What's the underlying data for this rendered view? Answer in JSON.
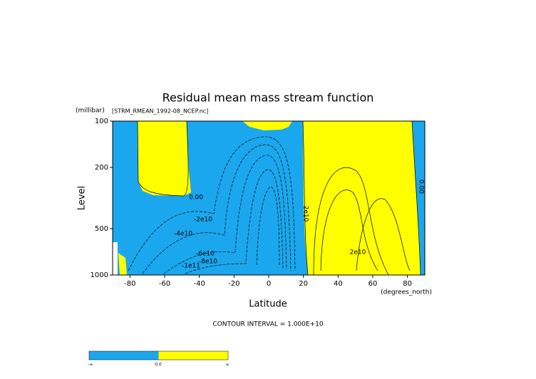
{
  "chart_data": {
    "type": "contour",
    "title": "Residual mean mass stream function",
    "y_units": "(millibar)",
    "subtitle": "[STRM_RMEAN_1992-08_NCEP.nc]",
    "y_label": "Level",
    "x_label": "Latitude",
    "x_units": "(degrees_north)",
    "note": "CONTOUR INTERVAL = 1.000E+10",
    "xlim": [
      -90,
      90
    ],
    "xticks": [
      -80,
      -60,
      -40,
      -20,
      0,
      20,
      40,
      60,
      80
    ],
    "ylim": [
      1000,
      100
    ],
    "yticks": [
      100,
      200,
      500,
      1000
    ],
    "y_log": true,
    "contour_labels": [
      "0.00",
      "-2e10",
      "-4e10",
      "-6e10",
      "-8e10",
      "-1e11",
      "2e10",
      "0.00",
      "2e10"
    ],
    "colors": {
      "negative": "#1aa7ee",
      "positive": "#ffff00"
    },
    "colorbar": {
      "ticks": [
        "-∞",
        "0.0",
        "∞"
      ]
    }
  }
}
